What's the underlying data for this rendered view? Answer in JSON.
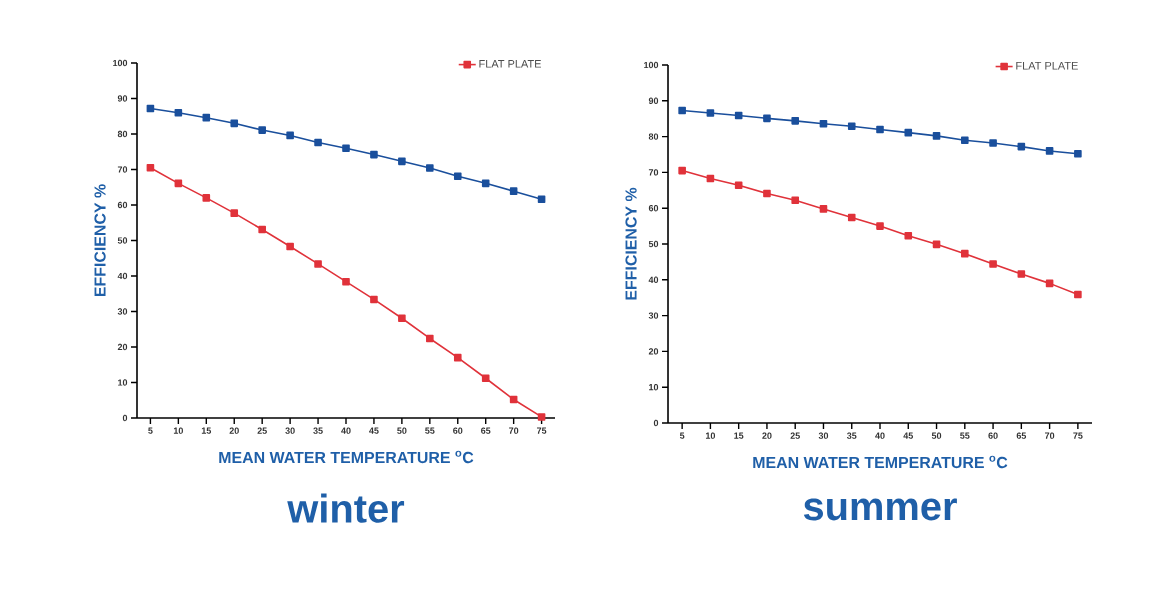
{
  "chart_data": [
    {
      "type": "line",
      "title": "winter",
      "xlabel": "MEAN WATER TEMPERATURE $^{o}$C",
      "ylabel": "EFFICIENCY %",
      "x": [
        5,
        10,
        15,
        20,
        25,
        30,
        35,
        40,
        45,
        50,
        55,
        60,
        65,
        70,
        75
      ],
      "series": [
        {
          "color": "#1a4f9c",
          "values": [
            87.2,
            86.0,
            84.6,
            83.0,
            81.1,
            79.6,
            77.6,
            76.0,
            74.2,
            72.3,
            70.4,
            68.1,
            66.1,
            63.9,
            61.6
          ]
        },
        {
          "name": "FLAT PLATE",
          "color": "#e0323a",
          "values": [
            70.5,
            66.1,
            62.0,
            57.7,
            53.1,
            48.3,
            43.4,
            38.4,
            33.4,
            28.1,
            22.4,
            17.0,
            11.2,
            5.2,
            0.3
          ]
        }
      ],
      "xlim": [
        2.6,
        77.4
      ],
      "ylim": [
        0,
        100
      ],
      "xticks": [
        5,
        10,
        15,
        20,
        25,
        30,
        35,
        40,
        45,
        50,
        55,
        60,
        65,
        70,
        75
      ],
      "yticks": [
        0,
        10,
        20,
        30,
        40,
        50,
        60,
        70,
        80,
        90,
        100
      ],
      "grid": false,
      "legend": "top right",
      "marker": "square",
      "line_style": "solid"
    },
    {
      "type": "line",
      "title": "summer",
      "xlabel": "MEAN WATER TEMPERATURE $^{o}$C",
      "ylabel": "EFFICIENCY %",
      "x": [
        5,
        10,
        15,
        20,
        25,
        30,
        35,
        40,
        45,
        50,
        55,
        60,
        65,
        70,
        75
      ],
      "series": [
        {
          "color": "#1a4f9c",
          "values": [
            87.3,
            86.6,
            85.9,
            85.1,
            84.4,
            83.6,
            82.9,
            82.0,
            81.1,
            80.2,
            79.0,
            78.2,
            77.2,
            76.0,
            75.2
          ]
        },
        {
          "name": "FLAT PLATE",
          "color": "#e0323a",
          "values": [
            70.5,
            68.3,
            66.4,
            64.1,
            62.2,
            59.8,
            57.4,
            55.0,
            52.3,
            49.9,
            47.3,
            44.4,
            41.6,
            39.0,
            35.9
          ]
        }
      ],
      "xlim": [
        2.5,
        77.5
      ],
      "ylim": [
        0,
        100
      ],
      "xticks": [
        5,
        10,
        15,
        20,
        25,
        30,
        35,
        40,
        45,
        50,
        55,
        60,
        65,
        70,
        75
      ],
      "yticks": [
        0,
        10,
        20,
        30,
        40,
        50,
        60,
        70,
        80,
        90,
        100
      ],
      "grid": false,
      "legend": "top right",
      "marker": "square",
      "line_style": "solid"
    }
  ]
}
